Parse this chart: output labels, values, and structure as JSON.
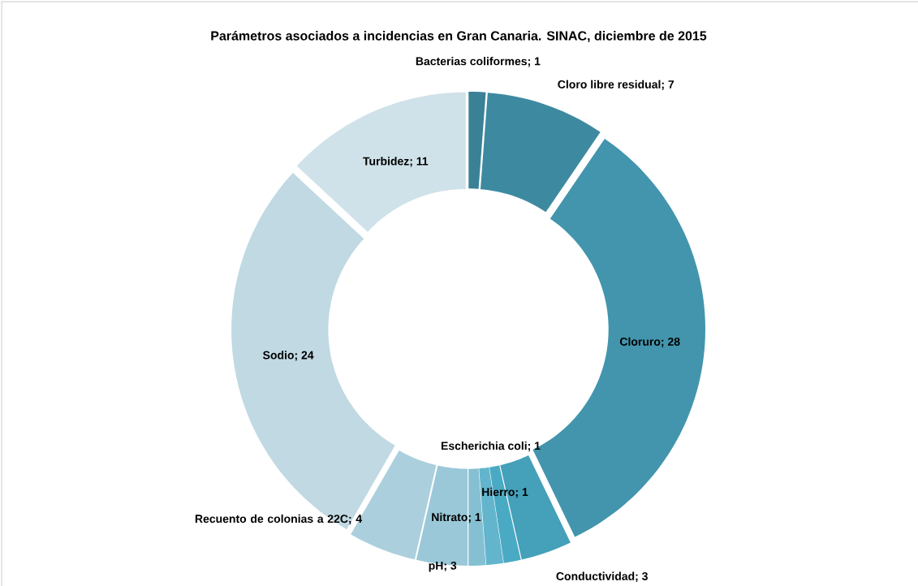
{
  "chart_data": {
    "type": "donut",
    "title": "Parámetros asociados a incidencias en Gran Canaria. SINAC, diciembre de 2015",
    "categories": [
      "Bacterias coliformes",
      "Cloro libre residual",
      "Cloruro",
      "Conductividad",
      "Escherichia coli",
      "Hierro",
      "Nitrato",
      "pH",
      "Recuento de colonias a 22C",
      "Sodio",
      "Turbidez"
    ],
    "values": [
      1,
      7,
      28,
      3,
      1,
      1,
      1,
      3,
      4,
      24,
      11
    ],
    "colors": [
      "#3a8196",
      "#3d8aa0",
      "#4295ad",
      "#45a0b9",
      "#4aaac4",
      "#62b5cc",
      "#84c0d2",
      "#9ac8d8",
      "#accfdd",
      "#c0d9e3",
      "#cfe2e9"
    ],
    "data_labels": true,
    "value_labels": [
      "; 1",
      "; 7",
      "; 28",
      "; 3",
      "; 1",
      "; 1",
      "; 1",
      "; 3",
      "; 4",
      "; 24",
      "; 11"
    ]
  }
}
